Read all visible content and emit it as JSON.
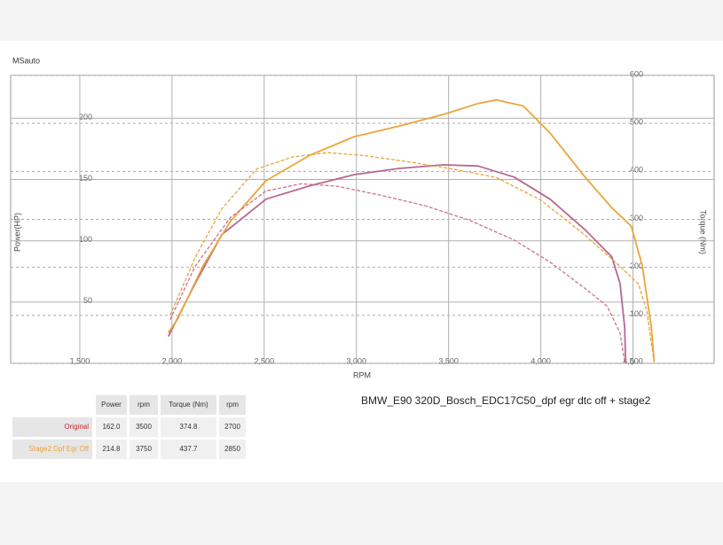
{
  "brand": "MSauto",
  "chart_data": {
    "type": "line",
    "title": "BMW_E90 320D_Bosch_EDC17C50_dpf egr dtc off + stage2",
    "x_label": "RPM",
    "y_label": "Power(HP)",
    "y2_label": "Torque (Nm)",
    "xlim": [
      1125,
      4940
    ],
    "ylim": [
      0,
      235
    ],
    "y2lim": [
      0,
      600
    ],
    "xticks": [
      {
        "value": 1500,
        "label": "1,500"
      },
      {
        "value": 2000,
        "label": "2,000"
      },
      {
        "value": 2500,
        "label": "2,500"
      },
      {
        "value": 3000,
        "label": "3,000"
      },
      {
        "value": 3500,
        "label": "3,500"
      },
      {
        "value": 4000,
        "label": "4,000"
      },
      {
        "value": 4500,
        "label": "4,500"
      }
    ],
    "yticks": [
      50,
      100,
      150,
      200
    ],
    "y2ticks": [
      0,
      100,
      200,
      300,
      400,
      500,
      600
    ],
    "grid": true,
    "series": [
      {
        "name": "Original",
        "color": "#b5698f",
        "axis": "y",
        "dashed": false,
        "x": [
          1980,
          2125,
          2270,
          2510,
          2750,
          2990,
          3230,
          3470,
          3660,
          3855,
          4050,
          4240,
          4385,
          4430,
          4455,
          4460
        ],
        "values": [
          22,
          65,
          105,
          134,
          145,
          154,
          159,
          162,
          161,
          152,
          134,
          109,
          87,
          65,
          29,
          1
        ]
      },
      {
        "name": "Stage2 Dpf Egr Off",
        "color": "#e9a63b",
        "axis": "y",
        "dashed": false,
        "x": [
          1980,
          2030,
          2170,
          2317,
          2510,
          2750,
          2990,
          3230,
          3470,
          3660,
          3760,
          3905,
          4050,
          4240,
          4385,
          4490,
          4550,
          4600,
          4615
        ],
        "values": [
          25,
          36,
          80,
          116,
          149,
          170,
          185,
          193.5,
          203,
          212,
          215,
          210,
          188,
          152,
          127,
          112,
          80,
          29,
          1
        ]
      },
      {
        "color": "#d0708e",
        "axis": "y2",
        "dashed": true,
        "x": [
          1990,
          2125,
          2317,
          2510,
          2700,
          2895,
          3135,
          3375,
          3615,
          3855,
          4050,
          4240,
          4360,
          4430,
          4455
        ],
        "values": [
          91,
          202,
          304,
          359,
          374,
          369,
          350,
          328,
          298,
          257,
          211,
          156,
          119,
          63,
          2
        ]
      },
      {
        "color": "#e9a63b",
        "axis": "y2",
        "dashed": true,
        "x": [
          1990,
          2125,
          2270,
          2460,
          2655,
          2845,
          3040,
          3280,
          3520,
          3760,
          4000,
          4240,
          4430,
          4530,
          4575,
          4615
        ],
        "values": [
          100,
          220,
          322,
          405,
          430,
          439,
          433,
          420,
          405,
          387,
          340,
          267,
          202,
          165,
          109,
          2
        ]
      }
    ]
  },
  "table": {
    "header": [
      "Power",
      "rpm",
      "Torque (Nm)",
      "rpm"
    ],
    "rows": [
      [
        "162.0",
        "3500",
        "374.8",
        "2700"
      ],
      [
        "214.8",
        "3750",
        "437.7",
        "2850"
      ]
    ]
  }
}
